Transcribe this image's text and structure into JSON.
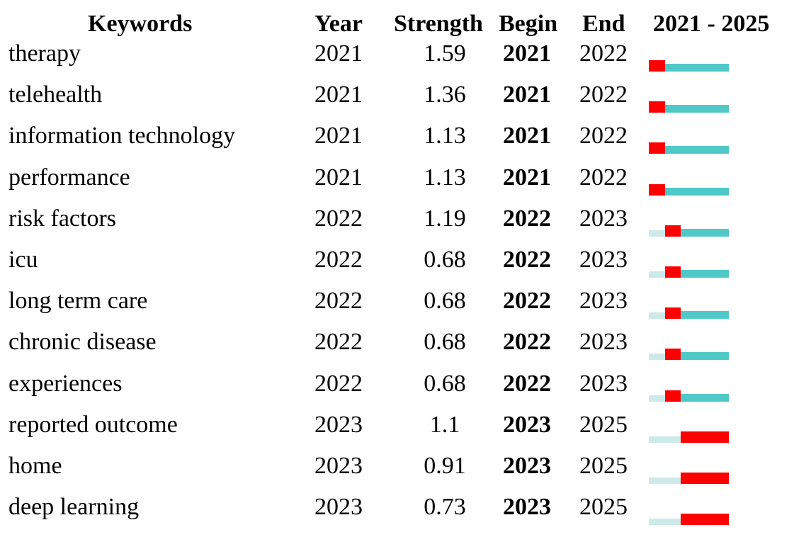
{
  "colors": {
    "burst": "#ff0000",
    "active": "#4fc8c8",
    "before": "#cceaea"
  },
  "headers": {
    "keywords": "Keywords",
    "year": "Year",
    "strength": "Strength",
    "begin": "Begin",
    "end": "End",
    "range": "2021 - 2025"
  },
  "timeline": {
    "start": 2021,
    "end": 2025
  },
  "chart_data": {
    "type": "table",
    "columns": [
      "Keywords",
      "Year",
      "Strength",
      "Begin",
      "End",
      "2021 - 2025"
    ],
    "rows": [
      {
        "keyword": "therapy",
        "year": "2021",
        "strength": "1.59",
        "begin": "2021",
        "end": "2022"
      },
      {
        "keyword": "telehealth",
        "year": "2021",
        "strength": "1.36",
        "begin": "2021",
        "end": "2022"
      },
      {
        "keyword": "information technology",
        "year": "2021",
        "strength": "1.13",
        "begin": "2021",
        "end": "2022"
      },
      {
        "keyword": "performance",
        "year": "2021",
        "strength": "1.13",
        "begin": "2021",
        "end": "2022"
      },
      {
        "keyword": "risk factors",
        "year": "2022",
        "strength": "1.19",
        "begin": "2022",
        "end": "2023"
      },
      {
        "keyword": "icu",
        "year": "2022",
        "strength": "0.68",
        "begin": "2022",
        "end": "2023"
      },
      {
        "keyword": "long term care",
        "year": "2022",
        "strength": "0.68",
        "begin": "2022",
        "end": "2023"
      },
      {
        "keyword": "chronic disease",
        "year": "2022",
        "strength": "0.68",
        "begin": "2022",
        "end": "2023"
      },
      {
        "keyword": "experiences",
        "year": "2022",
        "strength": "0.68",
        "begin": "2022",
        "end": "2023"
      },
      {
        "keyword": "reported outcome",
        "year": "2023",
        "strength": "1.1",
        "begin": "2023",
        "end": "2025"
      },
      {
        "keyword": "home",
        "year": "2023",
        "strength": "0.91",
        "begin": "2023",
        "end": "2025"
      },
      {
        "keyword": "deep learning",
        "year": "2023",
        "strength": "0.73",
        "begin": "2023",
        "end": "2025"
      }
    ]
  }
}
